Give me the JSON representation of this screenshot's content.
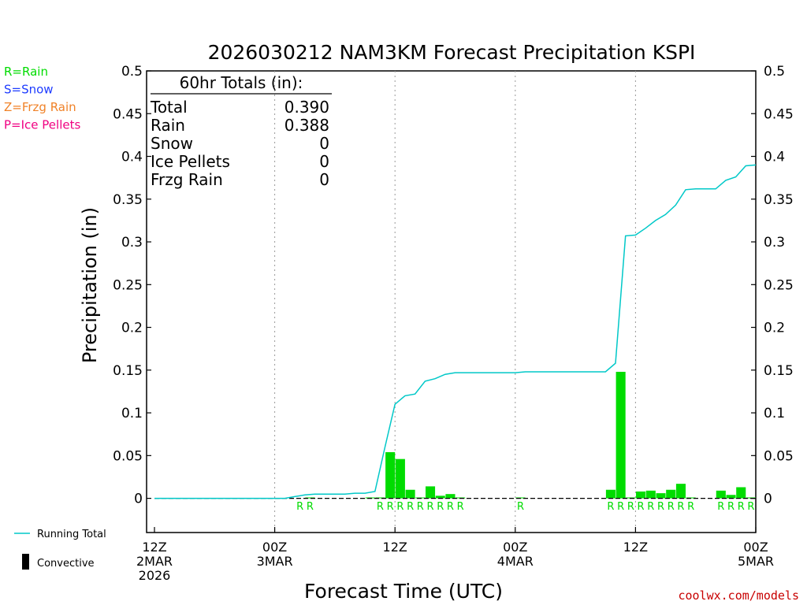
{
  "chart_data": {
    "type": "bar",
    "title": "2026030212 NAM3KM Forecast Precipitation KSPI",
    "xlabel": "Forecast Time (UTC)",
    "ylabel": "Precipitation (in)",
    "ylim": [
      -0.04,
      0.5
    ],
    "xlim_hours": [
      0,
      60
    ],
    "y_ticks": [
      0,
      0.05,
      0.1,
      0.15,
      0.2,
      0.25,
      0.3,
      0.35,
      0.4,
      0.45,
      0.5
    ],
    "y_tick_labels": [
      "0",
      "0.05",
      "0.1",
      "0.15",
      "0.2",
      "0.25",
      "0.3",
      "0.35",
      "0.4",
      "0.45",
      "0.5"
    ],
    "x_ticks": [
      {
        "hour": 0,
        "lines": [
          "12Z",
          "2MAR",
          "2026"
        ]
      },
      {
        "hour": 12,
        "lines": [
          "00Z",
          "3MAR"
        ]
      },
      {
        "hour": 24,
        "lines": [
          "12Z"
        ]
      },
      {
        "hour": 36,
        "lines": [
          "00Z",
          "4MAR"
        ]
      },
      {
        "hour": 48,
        "lines": [
          "12Z"
        ]
      },
      {
        "hour": 60,
        "lines": [
          "00Z",
          "5MAR"
        ]
      }
    ],
    "x_grid_hours": [
      12,
      24,
      36,
      48
    ],
    "grid": true,
    "bars": [
      {
        "hour": 16,
        "value": 0.001
      },
      {
        "hour": 22,
        "value": 0.001
      },
      {
        "hour": 23,
        "value": 0.001
      },
      {
        "hour": 24,
        "value": 0.054
      },
      {
        "hour": 25,
        "value": 0.046
      },
      {
        "hour": 26,
        "value": 0.01
      },
      {
        "hour": 27,
        "value": 0.001
      },
      {
        "hour": 28,
        "value": 0.014
      },
      {
        "hour": 29,
        "value": 0.003
      },
      {
        "hour": 30,
        "value": 0.005
      },
      {
        "hour": 31,
        "value": 0.001
      },
      {
        "hour": 37,
        "value": 0.001
      },
      {
        "hour": 46,
        "value": 0.01
      },
      {
        "hour": 47,
        "value": 0.148
      },
      {
        "hour": 48,
        "value": 0.001
      },
      {
        "hour": 49,
        "value": 0.008
      },
      {
        "hour": 50,
        "value": 0.009
      },
      {
        "hour": 51,
        "value": 0.006
      },
      {
        "hour": 52,
        "value": 0.01
      },
      {
        "hour": 53,
        "value": 0.017
      },
      {
        "hour": 54,
        "value": 0.001
      },
      {
        "hour": 57,
        "value": 0.009
      },
      {
        "hour": 58,
        "value": 0.004
      },
      {
        "hour": 59,
        "value": 0.013
      },
      {
        "hour": 60,
        "value": 0.001
      }
    ],
    "precip_type_marks": [
      {
        "hour": 15,
        "label": "R"
      },
      {
        "hour": 16,
        "label": "R"
      },
      {
        "hour": 23,
        "label": "R"
      },
      {
        "hour": 24,
        "label": "R"
      },
      {
        "hour": 25,
        "label": "R"
      },
      {
        "hour": 26,
        "label": "R"
      },
      {
        "hour": 27,
        "label": "R"
      },
      {
        "hour": 28,
        "label": "R"
      },
      {
        "hour": 29,
        "label": "R"
      },
      {
        "hour": 30,
        "label": "R"
      },
      {
        "hour": 31,
        "label": "R"
      },
      {
        "hour": 37,
        "label": "R"
      },
      {
        "hour": 46,
        "label": "R"
      },
      {
        "hour": 47,
        "label": "R"
      },
      {
        "hour": 48,
        "label": "R"
      },
      {
        "hour": 49,
        "label": "R"
      },
      {
        "hour": 50,
        "label": "R"
      },
      {
        "hour": 51,
        "label": "R"
      },
      {
        "hour": 52,
        "label": "R"
      },
      {
        "hour": 53,
        "label": "R"
      },
      {
        "hour": 54,
        "label": "R"
      },
      {
        "hour": 57,
        "label": "R"
      },
      {
        "hour": 58,
        "label": "R"
      },
      {
        "hour": 59,
        "label": "R"
      },
      {
        "hour": 60,
        "label": "R"
      }
    ],
    "running_total": [
      [
        0,
        0
      ],
      [
        12,
        0
      ],
      [
        13,
        0
      ],
      [
        14,
        0.002
      ],
      [
        15,
        0.004
      ],
      [
        16,
        0.005
      ],
      [
        17,
        0.005
      ],
      [
        18,
        0.005
      ],
      [
        19,
        0.005
      ],
      [
        20,
        0.006
      ],
      [
        21,
        0.006
      ],
      [
        22,
        0.008
      ],
      [
        23,
        0.06
      ],
      [
        24,
        0.11
      ],
      [
        25,
        0.12
      ],
      [
        26,
        0.122
      ],
      [
        27,
        0.137
      ],
      [
        28,
        0.14
      ],
      [
        29,
        0.145
      ],
      [
        30,
        0.147
      ],
      [
        31,
        0.147
      ],
      [
        36,
        0.147
      ],
      [
        37,
        0.148
      ],
      [
        45,
        0.148
      ],
      [
        46,
        0.158
      ],
      [
        47,
        0.307
      ],
      [
        48,
        0.308
      ],
      [
        49,
        0.316
      ],
      [
        50,
        0.325
      ],
      [
        51,
        0.332
      ],
      [
        52,
        0.343
      ],
      [
        53,
        0.361
      ],
      [
        54,
        0.362
      ],
      [
        56,
        0.362
      ],
      [
        57,
        0.372
      ],
      [
        58,
        0.376
      ],
      [
        59,
        0.389
      ],
      [
        60,
        0.39
      ]
    ],
    "totals_box": {
      "heading": "60hr Totals (in):",
      "rows": [
        {
          "label": "Total",
          "value": "0.390"
        },
        {
          "label": "Rain",
          "value": "0.388"
        },
        {
          "label": "Snow",
          "value": "0"
        },
        {
          "label": "Ice Pellets",
          "value": "0"
        },
        {
          "label": "Frzg Rain",
          "value": "0"
        }
      ]
    },
    "type_legend": [
      {
        "text": "R=Rain",
        "color": "#00dc00"
      },
      {
        "text": "S=Snow",
        "color": "#1e3cff"
      },
      {
        "text": "Z=Frzg Rain",
        "color": "#f08228"
      },
      {
        "text": "P=Ice Pellets",
        "color": "#f00082"
      }
    ],
    "series_legend": [
      {
        "text": "Running Total",
        "color": "#00c8c8"
      },
      {
        "text": "Convective",
        "color": "#000000"
      }
    ],
    "credit": "coolwx.com/models",
    "colors": {
      "bar": "#00dc00",
      "line": "#00c8c8",
      "rmark": "#00dc00",
      "credit": "#c80000"
    }
  }
}
